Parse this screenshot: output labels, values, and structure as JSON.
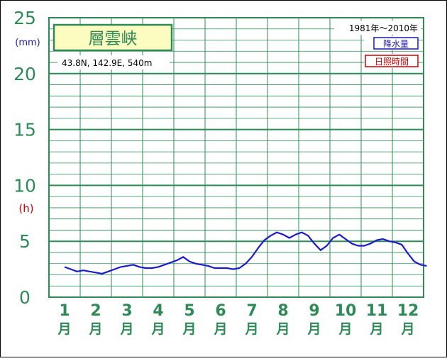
{
  "chart_data": {
    "type": "line",
    "title": "層雲峡",
    "location": "43.8N,  142.9E,  540m",
    "period": "1981年～2010年",
    "units": {
      "precip": "(mm)",
      "sunshine": "(h)"
    },
    "y_ticks": [
      "0",
      "5",
      "10",
      "15",
      "20",
      "25"
    ],
    "ylim": [
      0,
      25
    ],
    "x_ticks": [
      "1",
      "2",
      "3",
      "4",
      "5",
      "6",
      "7",
      "8",
      "9",
      "10",
      "11",
      "12"
    ],
    "x_unit": "月",
    "grid": true,
    "legend": [
      {
        "label": "降水量",
        "color": "#1a1aaa"
      },
      {
        "label": "日照時間",
        "color": "#cc0000"
      }
    ],
    "series": [
      {
        "name": "降水量",
        "color": "#1a1acc",
        "x": [
          1,
          1.2,
          1.4,
          1.6,
          1.8,
          2.0,
          2.2,
          2.4,
          2.6,
          2.8,
          3.0,
          3.2,
          3.4,
          3.6,
          3.8,
          4.0,
          4.2,
          4.4,
          4.6,
          4.8,
          5.0,
          5.2,
          5.4,
          5.6,
          5.8,
          6.0,
          6.2,
          6.4,
          6.6,
          6.8,
          7.0,
          7.2,
          7.4,
          7.6,
          7.8,
          8.0,
          8.2,
          8.4,
          8.6,
          8.8,
          9.0,
          9.2,
          9.4,
          9.6,
          9.8,
          10.0,
          10.2,
          10.4,
          10.6,
          10.8,
          11.0,
          11.2,
          11.4,
          11.6,
          11.8,
          12.0,
          12.2,
          12.4,
          12.6
        ],
        "values": [
          2.7,
          2.5,
          2.3,
          2.4,
          2.3,
          2.2,
          2.1,
          2.3,
          2.5,
          2.7,
          2.8,
          2.9,
          2.7,
          2.6,
          2.6,
          2.7,
          2.9,
          3.1,
          3.3,
          3.6,
          3.2,
          3.0,
          2.9,
          2.8,
          2.6,
          2.6,
          2.6,
          2.5,
          2.6,
          3.0,
          3.6,
          4.4,
          5.1,
          5.5,
          5.8,
          5.6,
          5.3,
          5.6,
          5.8,
          5.5,
          4.8,
          4.2,
          4.6,
          5.3,
          5.6,
          5.2,
          4.8,
          4.6,
          4.6,
          4.8,
          5.1,
          5.2,
          5.0,
          4.9,
          4.7,
          3.9,
          3.2,
          2.9,
          2.8
        ]
      }
    ]
  }
}
